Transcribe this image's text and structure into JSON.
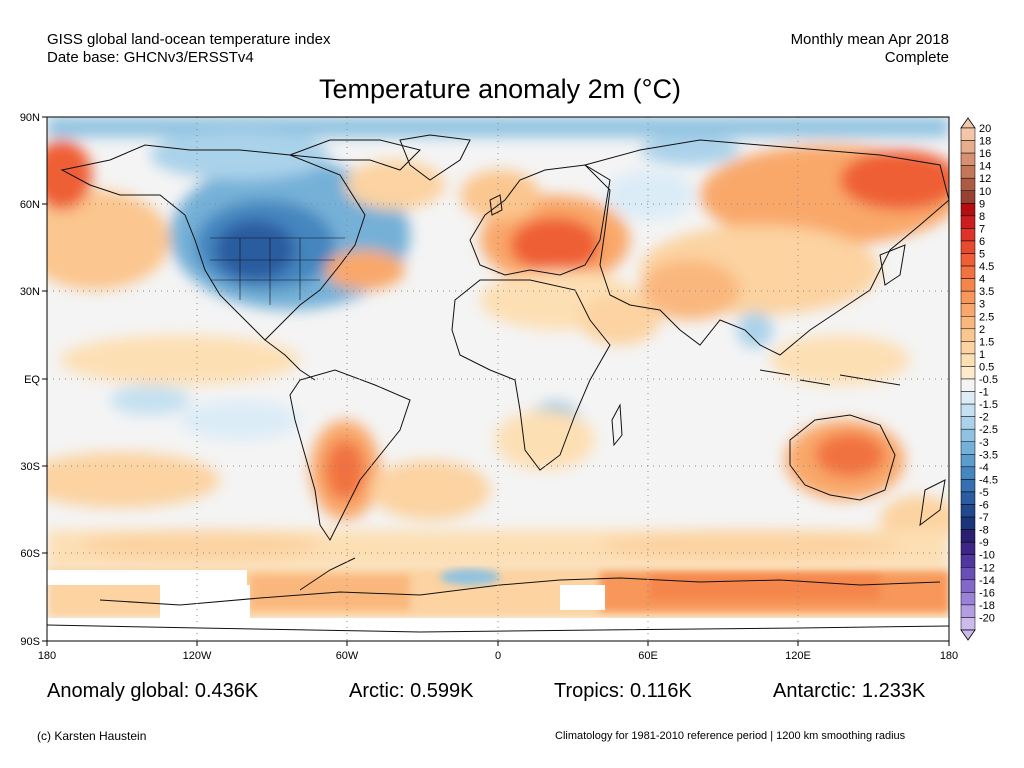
{
  "header": {
    "line1_left": "GISS global land-ocean temperature index",
    "line2_left": "Date base: GHCNv3/ERSSTv4",
    "line1_right": "Monthly mean Apr 2018",
    "line2_right": "Complete"
  },
  "title": "Temperature anomaly 2m (°C)",
  "map": {
    "lat_labels": [
      "90N",
      "60N",
      "30N",
      "EQ",
      "30S",
      "60S",
      "90S"
    ],
    "lon_labels": [
      "180",
      "120W",
      "60W",
      "0",
      "60E",
      "120E",
      "180"
    ],
    "colorbar": [
      {
        "label": "20",
        "color": "#f2c6a8"
      },
      {
        "label": "18",
        "color": "#e8ad8a"
      },
      {
        "label": "16",
        "color": "#d89170"
      },
      {
        "label": "14",
        "color": "#c47658"
      },
      {
        "label": "12",
        "color": "#ad5c44"
      },
      {
        "label": "10",
        "color": "#954233"
      },
      {
        "label": "9",
        "color": "#b30f10"
      },
      {
        "label": "8",
        "color": "#cc1e1e"
      },
      {
        "label": "7",
        "color": "#de3328"
      },
      {
        "label": "6",
        "color": "#e8492f"
      },
      {
        "label": "5",
        "color": "#ef5e36"
      },
      {
        "label": "4.5",
        "color": "#f1723f"
      },
      {
        "label": "4",
        "color": "#f5864b"
      },
      {
        "label": "3.5",
        "color": "#f7975a"
      },
      {
        "label": "3",
        "color": "#f9a86b"
      },
      {
        "label": "2.5",
        "color": "#fab77d"
      },
      {
        "label": "2",
        "color": "#fbc68f"
      },
      {
        "label": "1.5",
        "color": "#fcd3a1"
      },
      {
        "label": "1",
        "color": "#fddfb4"
      },
      {
        "label": "0.5",
        "color": "#fdebcb"
      },
      {
        "label": "-0.5",
        "color": "#f4f4f4"
      },
      {
        "label": "-1",
        "color": "#dcecf7"
      },
      {
        "label": "-1.5",
        "color": "#c4e0f1"
      },
      {
        "label": "-2",
        "color": "#aad2ea"
      },
      {
        "label": "-2.5",
        "color": "#8fc2e1"
      },
      {
        "label": "-3",
        "color": "#74b0d7"
      },
      {
        "label": "-3.5",
        "color": "#5a9ccb"
      },
      {
        "label": "-4",
        "color": "#4586bf"
      },
      {
        "label": "-4.5",
        "color": "#3670b0"
      },
      {
        "label": "-5",
        "color": "#2b5ba0"
      },
      {
        "label": "-6",
        "color": "#22488e"
      },
      {
        "label": "-7",
        "color": "#1b357a"
      },
      {
        "label": "-8",
        "color": "#2b1f72"
      },
      {
        "label": "-9",
        "color": "#3d2685"
      },
      {
        "label": "-10",
        "color": "#5037a0"
      },
      {
        "label": "-12",
        "color": "#6a4fb8"
      },
      {
        "label": "-14",
        "color": "#8468c9"
      },
      {
        "label": "-16",
        "color": "#9c82d6"
      },
      {
        "label": "-18",
        "color": "#b49ee2"
      },
      {
        "label": "-20",
        "color": "#ccbaec"
      }
    ]
  },
  "stats": {
    "global": "Anomaly global: 0.436K",
    "arctic": "Arctic: 0.599K",
    "tropics": "Tropics: 0.116K",
    "antarctic": "Antarctic: 1.233K"
  },
  "footer": {
    "credit": "(c) Karsten Haustein",
    "note": "Climatology for 1981-2010 reference period | 1200 km smoothing radius"
  }
}
